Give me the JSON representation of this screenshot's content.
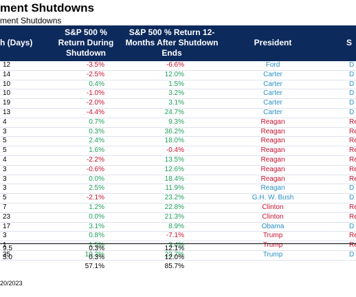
{
  "title": "ment Shutdowns",
  "subtitle": "ment Shutdowns",
  "headers": {
    "length": "h (Days)",
    "ret_during": [
      "S&P 500 %",
      "Return During",
      "Shutdown"
    ],
    "ret_after": [
      "S&P 500 % Return 12-",
      "Months After Shutdown",
      "Ends"
    ],
    "president": "President",
    "party": "S"
  },
  "rows": [
    {
      "len": "12",
      "ret": "-3.5%",
      "ret12": "-6.6%",
      "pres": "Ford",
      "party": "D"
    },
    {
      "len": "14",
      "ret": "-2.5%",
      "ret12": "12.0%",
      "pres": "Carter",
      "party": "D"
    },
    {
      "len": "10",
      "ret": "0.4%",
      "ret12": "1.5%",
      "pres": "Carter",
      "party": "D"
    },
    {
      "len": "10",
      "ret": "-1.0%",
      "ret12": "3.2%",
      "pres": "Carter",
      "party": "D"
    },
    {
      "len": "19",
      "ret": "-2.0%",
      "ret12": "3.1%",
      "pres": "Carter",
      "party": "D"
    },
    {
      "len": "13",
      "ret": "-4.4%",
      "ret12": "24.7%",
      "pres": "Carter",
      "party": "D"
    },
    {
      "len": "4",
      "ret": "0.7%",
      "ret12": "9.3%",
      "pres": "Reagan",
      "party": "Re"
    },
    {
      "len": "3",
      "ret": "0.3%",
      "ret12": "36.2%",
      "pres": "Reagan",
      "party": "Re"
    },
    {
      "len": "5",
      "ret": "2.4%",
      "ret12": "18.0%",
      "pres": "Reagan",
      "party": "Re"
    },
    {
      "len": "5",
      "ret": "1.6%",
      "ret12": "-0.4%",
      "pres": "Reagan",
      "party": "Re"
    },
    {
      "len": "4",
      "ret": "-2.2%",
      "ret12": "13.5%",
      "pres": "Reagan",
      "party": "Re"
    },
    {
      "len": "3",
      "ret": "-0.6%",
      "ret12": "12.6%",
      "pres": "Reagan",
      "party": "Re"
    },
    {
      "len": "3",
      "ret": "0.0%",
      "ret12": "18.4%",
      "pres": "Reagan",
      "party": "Re"
    },
    {
      "len": "3",
      "ret": "2.5%",
      "ret12": "11.9%",
      "pres": "Reagan",
      "party": "D"
    },
    {
      "len": "5",
      "ret": "-2.1%",
      "ret12": "23.2%",
      "pres": "G.H. W. Bush",
      "party": "D"
    },
    {
      "len": "7",
      "ret": "1.2%",
      "ret12": "22.8%",
      "pres": "Clinton",
      "party": "Re"
    },
    {
      "len": "23",
      "ret": "0.0%",
      "ret12": "21.3%",
      "pres": "Clinton",
      "party": "Re"
    },
    {
      "len": "17",
      "ret": "3.1%",
      "ret12": "8.9%",
      "pres": "Obama",
      "party": "D"
    },
    {
      "len": "3",
      "ret": "0.8%",
      "ret12": "-7.1%",
      "pres": "Trump",
      "party": "Re"
    },
    {
      "len": "1",
      "ret": "1.5%",
      "ret12": "3.4%",
      "pres": "Trump",
      "party": "Re"
    },
    {
      "len": "35",
      "ret": "10.3%",
      "ret12": "23.7%",
      "pres": "Trump",
      "party": "D"
    }
  ],
  "summary": [
    {
      "len": "9.5",
      "ret": "0.3%",
      "ret12": "12.1%"
    },
    {
      "len": "5.0",
      "ret": "0.3%",
      "ret12": "12.0%"
    },
    {
      "len": "",
      "ret": "57.1%",
      "ret12": "85.7%"
    }
  ],
  "footer": "20/2023",
  "colors": {
    "header_bg": "#0d2a5c",
    "positive": "#1ea05a",
    "negative": "#c8102e",
    "republican": "#c8102e",
    "democrat": "#2a8fc4"
  }
}
